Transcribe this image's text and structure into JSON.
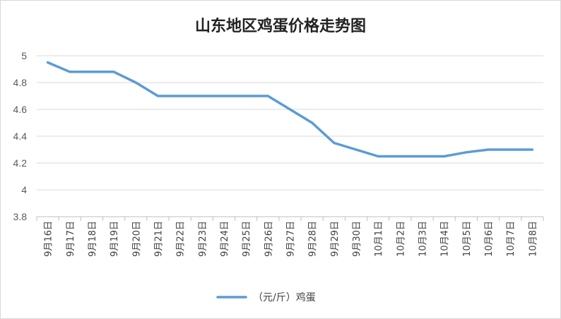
{
  "chart_data": {
    "type": "line",
    "title": "山东地区鸡蛋价格走势图",
    "xlabel": "",
    "ylabel": "",
    "ylim": [
      3.8,
      5
    ],
    "yticks": [
      "3.8",
      "4",
      "4.2",
      "4.4",
      "4.6",
      "4.8",
      "5"
    ],
    "grid": true,
    "legend_position": "bottom",
    "categories": [
      "9月16日",
      "9月17日",
      "9月18日",
      "9月19日",
      "9月20日",
      "9月21日",
      "9月22日",
      "9月23日",
      "9月24日",
      "9月25日",
      "9月26日",
      "9月27日",
      "9月28日",
      "9月29日",
      "9月30日",
      "10月1日",
      "10月2日",
      "10月3日",
      "10月4日",
      "10月5日",
      "10月6日",
      "10月7日",
      "10月8日"
    ],
    "series": [
      {
        "name": "（元/斤）鸡蛋",
        "color": "#5b9bd5",
        "values": [
          4.95,
          4.88,
          4.88,
          4.88,
          4.8,
          4.7,
          4.7,
          4.7,
          4.7,
          4.7,
          4.7,
          4.6,
          4.5,
          4.35,
          4.3,
          4.25,
          4.25,
          4.25,
          4.25,
          4.28,
          4.3,
          4.3,
          4.3
        ]
      }
    ]
  }
}
